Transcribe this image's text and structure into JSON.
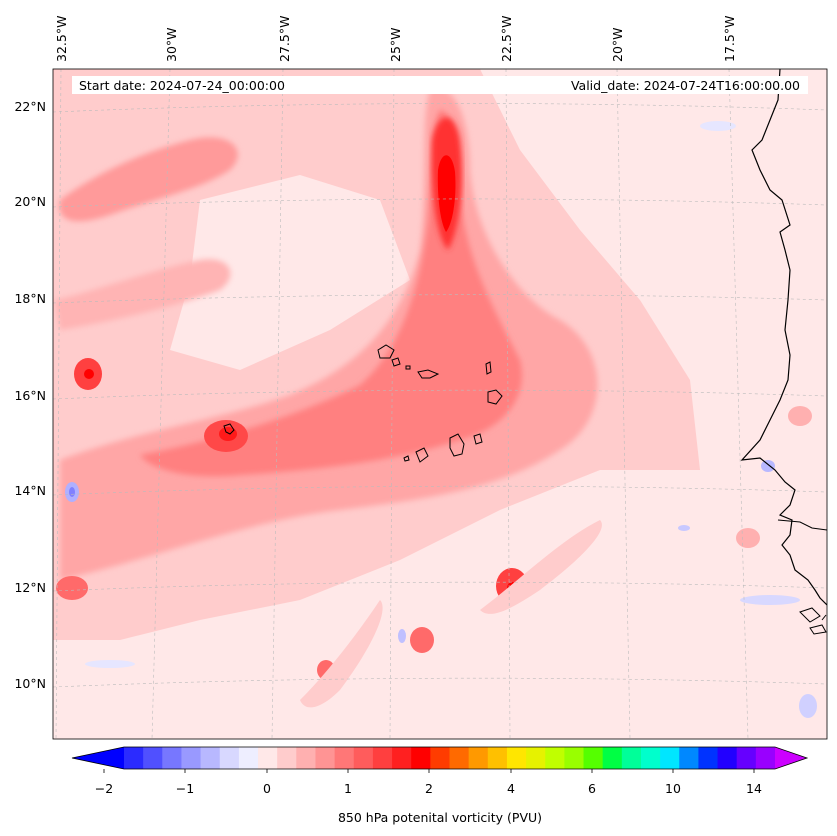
{
  "map": {
    "start_date": "Start date: 2024-07-24_00:00:00",
    "valid_date": "Valid_date: 2024-07-24T16:00:00.00",
    "lon_labels": [
      "32.5°W",
      "30°W",
      "27.5°W",
      "25°W",
      "22.5°W",
      "20°W",
      "17.5°W"
    ],
    "lat_labels": [
      "22°N",
      "20°N",
      "18°N",
      "16°N",
      "14°N",
      "12°N",
      "10°N"
    ],
    "field": "850 hPa potential vorticity",
    "colors": {
      "background_pv": "#ffe8e8",
      "coast": "#000000",
      "grid": "#bbbbbb"
    }
  },
  "colorbar": {
    "label": "850 hPa potenital vorticity (PVU)",
    "tick_labels": [
      "−2",
      "−1",
      "0",
      "1",
      "2",
      "4",
      "6",
      "10",
      "14"
    ],
    "colors": [
      "#0000ff",
      "#2b2bff",
      "#5050ff",
      "#7777ff",
      "#9999ff",
      "#b8b8ff",
      "#d8d8ff",
      "#eeeeff",
      "#ffe8e8",
      "#ffcccc",
      "#ffb0b0",
      "#ff9494",
      "#ff7777",
      "#ff5c5c",
      "#ff3f3f",
      "#ff2020",
      "#ff0000",
      "#ff3c00",
      "#ff6a00",
      "#ff9900",
      "#ffc000",
      "#ffe600",
      "#e6f200",
      "#c0ff00",
      "#99ff00",
      "#55ff00",
      "#00ff44",
      "#00ff99",
      "#00ffcc",
      "#00e6ff",
      "#0088ff",
      "#0033ff",
      "#2200ff",
      "#6600ff",
      "#9900ff",
      "#cc00ff"
    ]
  }
}
